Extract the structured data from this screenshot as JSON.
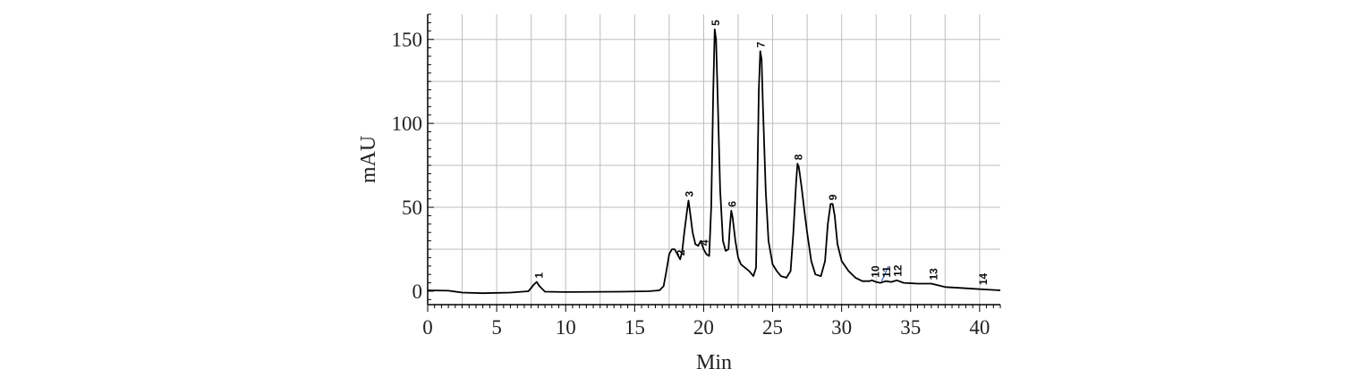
{
  "chart_data": {
    "type": "line",
    "title": "",
    "xlabel": "Min",
    "ylabel": "mAU",
    "xlim": [
      0,
      41.5
    ],
    "ylim": [
      -8,
      165
    ],
    "x_ticks": [
      0,
      5,
      10,
      15,
      20,
      25,
      30,
      35,
      40
    ],
    "y_ticks": [
      0,
      50,
      100,
      150
    ],
    "grid": true,
    "series": [
      {
        "name": "",
        "points": [
          [
            0,
            0.5
          ],
          [
            1.5,
            0.3
          ],
          [
            2.5,
            -0.8
          ],
          [
            4,
            -1.2
          ],
          [
            6,
            -0.8
          ],
          [
            7.3,
            0
          ],
          [
            7.7,
            4
          ],
          [
            7.9,
            5.5
          ],
          [
            8.1,
            3
          ],
          [
            8.5,
            -0.3
          ],
          [
            10,
            -0.5
          ],
          [
            14,
            -0.3
          ],
          [
            16,
            0
          ],
          [
            16.8,
            0.5
          ],
          [
            17.1,
            3
          ],
          [
            17.3,
            12
          ],
          [
            17.5,
            22
          ],
          [
            17.7,
            25
          ],
          [
            17.9,
            25
          ],
          [
            18.1,
            22
          ],
          [
            18.3,
            19
          ],
          [
            18.45,
            24
          ],
          [
            18.6,
            35
          ],
          [
            18.8,
            48
          ],
          [
            18.9,
            54
          ],
          [
            19.0,
            48
          ],
          [
            19.2,
            35
          ],
          [
            19.4,
            28
          ],
          [
            19.6,
            27
          ],
          [
            19.8,
            30
          ],
          [
            20.0,
            25
          ],
          [
            20.2,
            22
          ],
          [
            20.4,
            21
          ],
          [
            20.55,
            50
          ],
          [
            20.7,
            120
          ],
          [
            20.8,
            156
          ],
          [
            20.9,
            150
          ],
          [
            21.0,
            120
          ],
          [
            21.2,
            60
          ],
          [
            21.4,
            30
          ],
          [
            21.6,
            24
          ],
          [
            21.8,
            25
          ],
          [
            21.9,
            38
          ],
          [
            22.0,
            48
          ],
          [
            22.1,
            44
          ],
          [
            22.3,
            30
          ],
          [
            22.5,
            20
          ],
          [
            22.7,
            16
          ],
          [
            23.0,
            14
          ],
          [
            23.3,
            12
          ],
          [
            23.6,
            9
          ],
          [
            23.8,
            14
          ],
          [
            23.9,
            70
          ],
          [
            24.0,
            120
          ],
          [
            24.1,
            143
          ],
          [
            24.2,
            138
          ],
          [
            24.3,
            110
          ],
          [
            24.5,
            60
          ],
          [
            24.7,
            30
          ],
          [
            25.0,
            16
          ],
          [
            25.3,
            12
          ],
          [
            25.6,
            9
          ],
          [
            26.0,
            8
          ],
          [
            26.3,
            12
          ],
          [
            26.5,
            35
          ],
          [
            26.7,
            65
          ],
          [
            26.8,
            76
          ],
          [
            26.9,
            74
          ],
          [
            27.1,
            62
          ],
          [
            27.3,
            48
          ],
          [
            27.5,
            35
          ],
          [
            27.8,
            18
          ],
          [
            28.1,
            10
          ],
          [
            28.5,
            9
          ],
          [
            28.8,
            18
          ],
          [
            29.0,
            40
          ],
          [
            29.2,
            52
          ],
          [
            29.35,
            52
          ],
          [
            29.5,
            45
          ],
          [
            29.7,
            28
          ],
          [
            30.0,
            18
          ],
          [
            30.5,
            12
          ],
          [
            31.0,
            8
          ],
          [
            31.5,
            6
          ],
          [
            32.0,
            6
          ],
          [
            32.2,
            6.5
          ],
          [
            32.5,
            5.5
          ],
          [
            32.8,
            5
          ],
          [
            33.2,
            6
          ],
          [
            33.6,
            5.5
          ],
          [
            34.0,
            6.5
          ],
          [
            34.5,
            5
          ],
          [
            35.5,
            4.5
          ],
          [
            36.5,
            4.5
          ],
          [
            37.0,
            3.5
          ],
          [
            37.5,
            2.5
          ],
          [
            38.5,
            2
          ],
          [
            39.5,
            1.5
          ],
          [
            40.5,
            1
          ],
          [
            41.5,
            0.5
          ]
        ]
      }
    ],
    "peaks": [
      {
        "label": "1",
        "x": 8.0,
        "y": 5.5
      },
      {
        "label": "2",
        "x": 18.3,
        "y": 19
      },
      {
        "label": "3",
        "x": 18.9,
        "y": 54
      },
      {
        "label": "4",
        "x": 20.0,
        "y": 25
      },
      {
        "label": "5",
        "x": 20.8,
        "y": 156
      },
      {
        "label": "6",
        "x": 22.0,
        "y": 48
      },
      {
        "label": "7",
        "x": 24.1,
        "y": 143
      },
      {
        "label": "8",
        "x": 26.8,
        "y": 76
      },
      {
        "label": "9",
        "x": 29.3,
        "y": 52
      },
      {
        "label": "10",
        "x": 32.4,
        "y": 6
      },
      {
        "label": "11",
        "x": 33.2,
        "y": 6
      },
      {
        "label": "12",
        "x": 34.0,
        "y": 6.5
      },
      {
        "label": "13",
        "x": 36.6,
        "y": 4.5
      },
      {
        "label": "14",
        "x": 40.2,
        "y": 1.5
      }
    ]
  }
}
